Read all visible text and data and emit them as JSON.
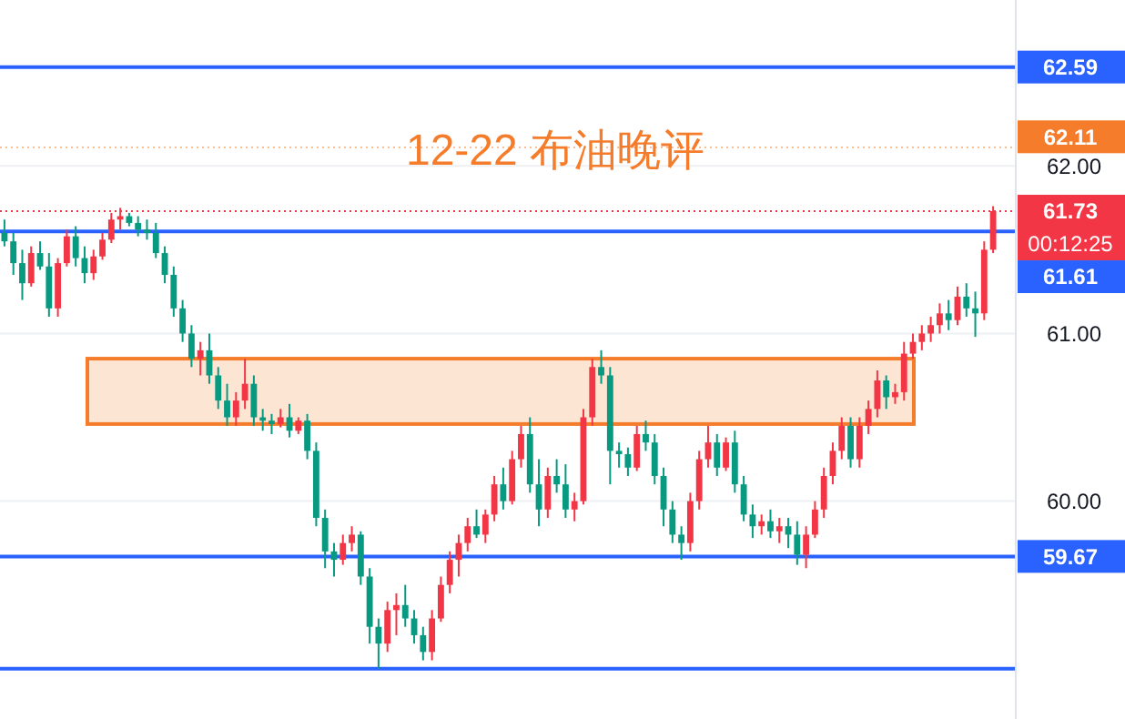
{
  "chart_data": {
    "type": "candlestick",
    "title": "12-22 布油晚评",
    "categories": [
      null,
      null,
      null,
      null,
      null,
      null,
      null,
      null,
      null,
      null,
      null,
      null,
      null,
      null,
      null,
      null,
      null,
      null,
      null,
      null,
      null,
      null,
      null,
      null,
      null,
      null,
      null,
      null,
      null,
      null,
      null,
      null,
      null,
      null,
      null,
      null,
      null,
      null,
      null,
      null,
      null,
      null,
      null,
      null,
      null,
      null,
      null,
      null,
      null,
      null,
      null,
      null,
      null,
      null,
      null,
      null,
      null,
      null,
      null,
      null,
      null,
      null,
      null,
      null,
      null,
      null,
      null,
      null,
      null,
      null,
      null,
      null,
      null,
      null,
      null,
      null,
      null,
      null,
      null,
      null,
      null,
      null,
      null,
      null,
      null,
      null,
      null,
      null,
      null,
      null,
      null,
      null,
      null,
      null,
      null,
      null,
      null,
      null,
      null,
      null,
      null,
      null,
      null,
      null,
      null,
      null,
      null,
      null,
      null,
      null,
      null,
      null
    ],
    "ohlc": [
      [
        61.6,
        61.68,
        61.52,
        61.55
      ],
      [
        61.55,
        61.6,
        61.35,
        61.42
      ],
      [
        61.42,
        61.5,
        61.2,
        61.3
      ],
      [
        61.3,
        61.52,
        61.28,
        61.48
      ],
      [
        61.48,
        61.55,
        61.38,
        61.4
      ],
      [
        61.4,
        61.48,
        61.1,
        61.15
      ],
      [
        61.15,
        61.45,
        61.1,
        61.42
      ],
      [
        61.42,
        61.62,
        61.4,
        61.58
      ],
      [
        61.58,
        61.64,
        61.4,
        61.45
      ],
      [
        61.45,
        61.52,
        61.3,
        61.36
      ],
      [
        61.36,
        61.5,
        61.32,
        61.46
      ],
      [
        61.46,
        61.6,
        61.44,
        61.56
      ],
      [
        61.56,
        61.72,
        61.54,
        61.68
      ],
      [
        61.68,
        61.75,
        61.62,
        61.7
      ],
      [
        61.7,
        61.72,
        61.64,
        61.66
      ],
      [
        61.66,
        61.7,
        61.58,
        61.62
      ],
      [
        61.62,
        61.68,
        61.56,
        61.6
      ],
      [
        61.6,
        61.66,
        61.45,
        61.48
      ],
      [
        61.48,
        61.52,
        61.3,
        61.35
      ],
      [
        61.35,
        61.4,
        61.1,
        61.15
      ],
      [
        61.15,
        61.2,
        60.95,
        61.0
      ],
      [
        61.0,
        61.05,
        60.8,
        60.85
      ],
      [
        60.85,
        60.95,
        60.75,
        60.9
      ],
      [
        60.9,
        61.0,
        60.7,
        60.75
      ],
      [
        60.75,
        60.8,
        60.55,
        60.6
      ],
      [
        60.6,
        60.7,
        60.45,
        60.5
      ],
      [
        60.5,
        60.65,
        60.45,
        60.6
      ],
      [
        60.6,
        60.85,
        60.55,
        60.7
      ],
      [
        60.7,
        60.75,
        60.45,
        60.5
      ],
      [
        60.5,
        60.55,
        60.42,
        60.48
      ],
      [
        60.48,
        60.52,
        60.4,
        60.46
      ],
      [
        60.46,
        60.55,
        60.44,
        60.5
      ],
      [
        60.5,
        60.58,
        60.38,
        60.42
      ],
      [
        60.42,
        60.5,
        60.4,
        60.48
      ],
      [
        60.48,
        60.52,
        60.25,
        60.3
      ],
      [
        60.3,
        60.35,
        59.85,
        59.9
      ],
      [
        59.9,
        59.95,
        59.6,
        59.7
      ],
      [
        59.7,
        59.75,
        59.55,
        59.65
      ],
      [
        59.65,
        59.8,
        59.62,
        59.75
      ],
      [
        59.75,
        59.85,
        59.7,
        59.8
      ],
      [
        59.8,
        59.82,
        59.5,
        59.55
      ],
      [
        59.55,
        59.6,
        59.15,
        59.25
      ],
      [
        59.25,
        59.3,
        59.0,
        59.15
      ],
      [
        59.15,
        59.4,
        59.1,
        59.35
      ],
      [
        59.35,
        59.45,
        59.2,
        59.38
      ],
      [
        59.38,
        59.5,
        59.25,
        59.3
      ],
      [
        59.3,
        59.35,
        59.15,
        59.2
      ],
      [
        59.2,
        59.25,
        59.05,
        59.1
      ],
      [
        59.1,
        59.35,
        59.05,
        59.3
      ],
      [
        59.3,
        59.55,
        59.28,
        59.5
      ],
      [
        59.5,
        59.7,
        59.45,
        59.65
      ],
      [
        59.65,
        59.8,
        59.55,
        59.75
      ],
      [
        59.75,
        59.9,
        59.7,
        59.85
      ],
      [
        59.85,
        59.95,
        59.78,
        59.8
      ],
      [
        59.8,
        59.95,
        59.75,
        59.92
      ],
      [
        59.92,
        60.15,
        59.88,
        60.1
      ],
      [
        60.1,
        60.2,
        59.95,
        60.0
      ],
      [
        60.0,
        60.3,
        59.98,
        60.25
      ],
      [
        60.25,
        60.45,
        60.2,
        60.4
      ],
      [
        60.4,
        60.5,
        60.05,
        60.1
      ],
      [
        60.1,
        60.25,
        59.85,
        59.95
      ],
      [
        59.95,
        60.2,
        59.9,
        60.15
      ],
      [
        60.15,
        60.25,
        60.05,
        60.1
      ],
      [
        60.1,
        60.22,
        59.9,
        59.95
      ],
      [
        59.95,
        60.05,
        59.88,
        60.0
      ],
      [
        60.0,
        60.55,
        59.98,
        60.5
      ],
      [
        60.5,
        60.85,
        60.45,
        60.8
      ],
      [
        60.8,
        60.9,
        60.7,
        60.75
      ],
      [
        60.75,
        60.8,
        60.1,
        60.3
      ],
      [
        60.3,
        60.35,
        60.2,
        60.28
      ],
      [
        60.28,
        60.32,
        60.15,
        60.2
      ],
      [
        60.2,
        60.45,
        60.18,
        60.4
      ],
      [
        60.4,
        60.48,
        60.3,
        60.35
      ],
      [
        60.35,
        60.4,
        60.1,
        60.15
      ],
      [
        60.15,
        60.2,
        59.85,
        59.95
      ],
      [
        59.95,
        60.0,
        59.75,
        59.8
      ],
      [
        59.8,
        59.85,
        59.65,
        59.75
      ],
      [
        59.75,
        60.05,
        59.7,
        60.0
      ],
      [
        60.0,
        60.3,
        59.95,
        60.25
      ],
      [
        60.25,
        60.45,
        60.2,
        60.35
      ],
      [
        60.35,
        60.4,
        60.15,
        60.2
      ],
      [
        60.2,
        60.38,
        60.18,
        60.35
      ],
      [
        60.35,
        60.42,
        60.05,
        60.1
      ],
      [
        60.1,
        60.15,
        59.88,
        59.92
      ],
      [
        59.92,
        59.98,
        59.78,
        59.85
      ],
      [
        59.85,
        59.92,
        59.8,
        59.88
      ],
      [
        59.88,
        59.95,
        59.78,
        59.82
      ],
      [
        59.82,
        59.9,
        59.75,
        59.85
      ],
      [
        59.85,
        59.9,
        59.72,
        59.8
      ],
      [
        59.8,
        59.88,
        59.62,
        59.68
      ],
      [
        59.68,
        59.85,
        59.6,
        59.8
      ],
      [
        59.8,
        60.0,
        59.78,
        59.95
      ],
      [
        59.95,
        60.2,
        59.9,
        60.15
      ],
      [
        60.15,
        60.35,
        60.1,
        60.3
      ],
      [
        60.3,
        60.5,
        60.25,
        60.45
      ],
      [
        60.45,
        60.5,
        60.2,
        60.25
      ],
      [
        60.25,
        60.5,
        60.2,
        60.45
      ],
      [
        60.45,
        60.6,
        60.4,
        60.55
      ],
      [
        60.55,
        60.78,
        60.5,
        60.72
      ],
      [
        60.72,
        60.75,
        60.55,
        60.62
      ],
      [
        60.62,
        60.7,
        60.58,
        60.65
      ],
      [
        60.65,
        60.95,
        60.6,
        60.88
      ],
      [
        60.88,
        61.0,
        60.85,
        60.95
      ],
      [
        60.95,
        61.05,
        60.9,
        61.0
      ],
      [
        61.0,
        61.1,
        60.95,
        61.05
      ],
      [
        61.05,
        61.18,
        61.0,
        61.12
      ],
      [
        61.12,
        61.2,
        61.02,
        61.08
      ],
      [
        61.08,
        61.28,
        61.05,
        61.22
      ],
      [
        61.22,
        61.3,
        61.1,
        61.15
      ],
      [
        61.15,
        61.25,
        60.98,
        61.12
      ],
      [
        61.12,
        61.55,
        61.08,
        61.5
      ],
      [
        61.5,
        61.76,
        61.48,
        61.73
      ]
    ],
    "colors": [
      "#089981",
      "#089981",
      "#089981",
      "#f23645",
      "#089981",
      "#089981",
      "#f23645",
      "#f23645",
      "#089981",
      "#089981",
      "#f23645",
      "#f23645",
      "#f23645",
      "#f23645",
      "#089981",
      "#089981",
      "#089981",
      "#089981",
      "#089981",
      "#089981",
      "#089981",
      "#089981",
      "#f23645",
      "#089981",
      "#089981",
      "#089981",
      "#f23645",
      "#f23645",
      "#089981",
      "#089981",
      "#089981",
      "#f23645",
      "#089981",
      "#f23645",
      "#089981",
      "#089981",
      "#089981",
      "#089981",
      "#f23645",
      "#f23645",
      "#089981",
      "#089981",
      "#089981",
      "#f23645",
      "#f23645",
      "#089981",
      "#089981",
      "#089981",
      "#f23645",
      "#f23645",
      "#f23645",
      "#f23645",
      "#f23645",
      "#089981",
      "#f23645",
      "#f23645",
      "#089981",
      "#f23645",
      "#f23645",
      "#089981",
      "#089981",
      "#f23645",
      "#089981",
      "#089981",
      "#f23645",
      "#f23645",
      "#f23645",
      "#089981",
      "#089981",
      "#089981",
      "#089981",
      "#f23645",
      "#089981",
      "#089981",
      "#089981",
      "#089981",
      "#089981",
      "#f23645",
      "#f23645",
      "#f23645",
      "#089981",
      "#f23645",
      "#089981",
      "#089981",
      "#089981",
      "#f23645",
      "#089981",
      "#f23645",
      "#089981",
      "#089981",
      "#f23645",
      "#f23645",
      "#f23645",
      "#f23645",
      "#f23645",
      "#089981",
      "#f23645",
      "#f23645",
      "#f23645",
      "#089981",
      "#f23645",
      "#f23645",
      "#f23645",
      "#f23645",
      "#f23645",
      "#f23645",
      "#089981",
      "#f23645",
      "#089981",
      "#089981",
      "#f23645",
      "#f23645"
    ],
    "ylim": [
      58.7,
      62.99
    ],
    "yticks": [
      {
        "value": 60,
        "label": "60.00"
      },
      {
        "value": 61,
        "label": "61.00"
      },
      {
        "value": 62,
        "label": "62.00"
      }
    ],
    "grid": "y",
    "tick_labels": "y",
    "ref_lines": [
      {
        "axis": "y",
        "value": 62.59,
        "label": "62.59",
        "color": "#2962ff"
      },
      {
        "axis": "y",
        "value": 61.61,
        "label": "61.61",
        "color": "#2962ff"
      },
      {
        "axis": "y",
        "value": 59.67,
        "label": "59.67",
        "color": "#2962ff"
      },
      {
        "axis": "y",
        "value": 59.0,
        "label": null,
        "color": "#2962ff"
      },
      {
        "axis": "y",
        "value": 62.11,
        "label": "62.11",
        "color": "#f57c2a",
        "line_style": "dotted"
      },
      {
        "axis": "y",
        "value": 61.73,
        "label": "61.73",
        "color": "#f23645",
        "line_style": "dotted"
      }
    ],
    "bands": [
      {
        "axis": "y",
        "from": 60.46,
        "to": 60.85,
        "label": null,
        "color": "#f57c2a"
      }
    ],
    "annotations": [
      "00:12:25"
    ]
  }
}
